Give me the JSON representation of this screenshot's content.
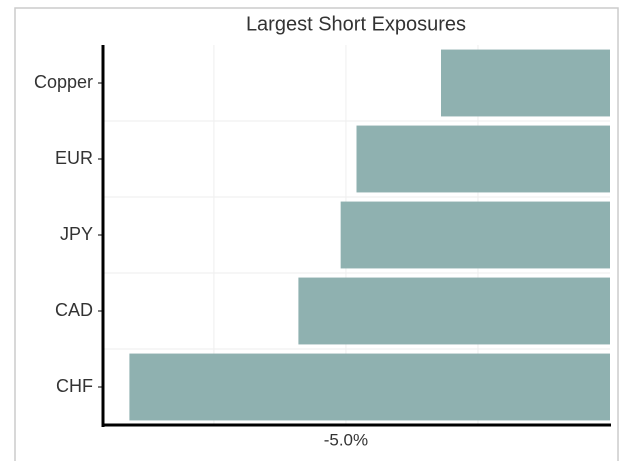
{
  "chart_data": {
    "type": "bar",
    "orientation": "horizontal",
    "title": "Largest Short Exposures",
    "categories": [
      "Copper",
      "EUR",
      "JPY",
      "CAD",
      "CHF"
    ],
    "values": [
      -3.2,
      -4.8,
      -5.1,
      -5.9,
      -9.1
    ],
    "color": "#8fb1b0",
    "xlim": [
      -9.6,
      0
    ],
    "xticks": [
      {
        "value": -5,
        "label": "-5.0%"
      }
    ],
    "minor_grid": [
      -7.5,
      -2.5
    ],
    "grid": true
  }
}
